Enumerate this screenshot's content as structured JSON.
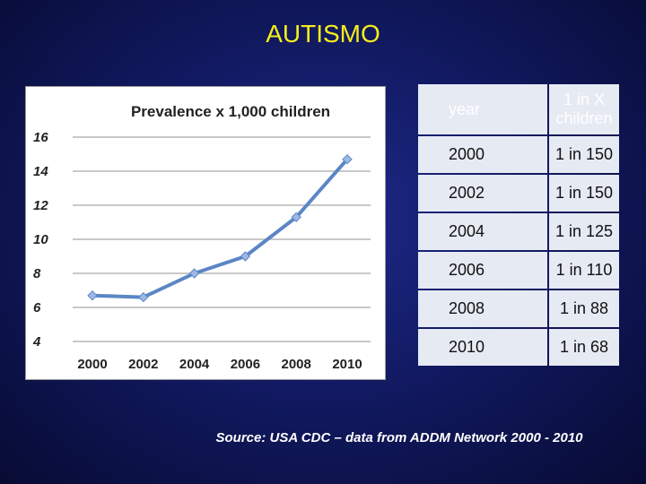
{
  "slide": {
    "title": "AUTISMO",
    "source": "Source: USA CDC – data from ADDM Network 2000 - 2010"
  },
  "table": {
    "headers": [
      "year",
      "1 in X children"
    ],
    "rows": [
      {
        "year": "2000",
        "ratio": "1 in 150"
      },
      {
        "year": "2002",
        "ratio": "1 in 150"
      },
      {
        "year": "2004",
        "ratio": "1 in 125"
      },
      {
        "year": "2006",
        "ratio": "1 in 110"
      },
      {
        "year": "2008",
        "ratio": "1 in 88"
      },
      {
        "year": "2010",
        "ratio": "1 in 68"
      }
    ]
  },
  "chart_data": {
    "type": "line",
    "title": "Prevalence x 1,000 children",
    "categories": [
      "2000",
      "2002",
      "2004",
      "2006",
      "2008",
      "2010"
    ],
    "series": [
      {
        "name": "Prevalence",
        "values": [
          6.7,
          6.6,
          8.0,
          9.0,
          11.3,
          14.7
        ]
      }
    ],
    "yticks": [
      4,
      6,
      8,
      10,
      12,
      14,
      16
    ],
    "ylim": [
      4,
      16
    ],
    "xlabel": "",
    "ylabel": "",
    "grid": true,
    "line_color": "#5b86c6",
    "marker_color": "#9db8e4"
  }
}
